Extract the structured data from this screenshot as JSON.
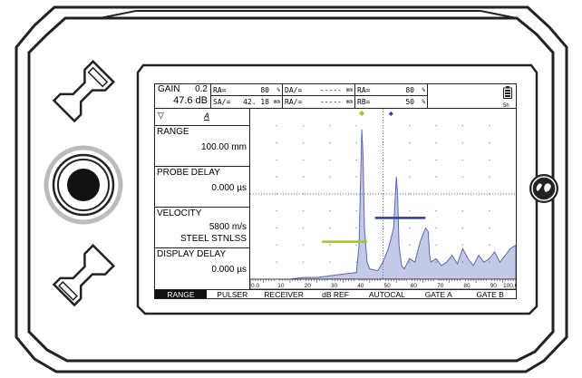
{
  "header": {
    "gain_label": "GAIN",
    "gain_step": "0.2",
    "gain_value": "47.6 dB",
    "measurements": [
      {
        "label": "RA=",
        "value": "80",
        "unit": "%"
      },
      {
        "label": "DA/=",
        "value": "-----",
        "unit": "mm"
      },
      {
        "label": "RA=",
        "value": "80",
        "unit": "%"
      },
      {
        "label": "SA/=",
        "value": "42. 18",
        "unit": "mm"
      },
      {
        "label": "RA/=",
        "value": "-----",
        "unit": "mm"
      },
      {
        "label": "RB=",
        "value": "50",
        "unit": "%"
      }
    ],
    "battery_label": "5h"
  },
  "sidebar": {
    "mode_label": "A",
    "params": [
      {
        "title": "RANGE",
        "value": "100.00 mm",
        "extra": ""
      },
      {
        "title": "PROBE DELAY",
        "value": "0.000 µs",
        "extra": ""
      },
      {
        "title": "VELOCITY",
        "value": "5800 m/s",
        "extra": "STEEL STNLSS"
      },
      {
        "title": "DISPLAY DELAY",
        "value": "0.000 µs",
        "extra": ""
      }
    ]
  },
  "scale_labels": [
    "0.0",
    "10",
    "20",
    "30",
    "40",
    "50",
    "60",
    "70",
    "80",
    "90",
    "100.0"
  ],
  "menu": {
    "items": [
      "RANGE",
      "PULSER",
      "RECEIVER",
      "dB REF",
      "AUTOCAL",
      "GATE A",
      "GATE B"
    ],
    "active": "RANGE"
  },
  "colors": {
    "signal": "#5666b8",
    "gate_a": "#9ec62b",
    "gate_b": "#2a3f96",
    "device_body": "#ffffff",
    "device_outline": "#222222"
  },
  "icons": {
    "up_button": "arrow-up-icon",
    "down_button": "arrow-down-icon",
    "joystick": "joystick-icon",
    "brand": "ge-logo-icon"
  },
  "chart_data": {
    "type": "line",
    "x": [
      0,
      5,
      10,
      15,
      20,
      25,
      30,
      35,
      40,
      41,
      42,
      42.5,
      43,
      44,
      45,
      48,
      50,
      52,
      54,
      55,
      55.5,
      56,
      57,
      58,
      60,
      62,
      64,
      66,
      67,
      67.5,
      68,
      70,
      72,
      74,
      76,
      78,
      80,
      82,
      84,
      86,
      88,
      90,
      92,
      94,
      96,
      98,
      100
    ],
    "y": [
      0,
      0,
      0,
      0,
      1,
      1,
      2,
      3,
      4,
      20,
      88,
      72,
      30,
      10,
      6,
      5,
      10,
      18,
      30,
      60,
      50,
      20,
      8,
      6,
      12,
      10,
      22,
      30,
      28,
      15,
      10,
      12,
      8,
      10,
      14,
      9,
      18,
      12,
      8,
      14,
      10,
      12,
      16,
      10,
      14,
      18,
      20
    ],
    "xlim": [
      0,
      100
    ],
    "ylim": [
      0,
      100
    ],
    "grid": true,
    "gates": [
      {
        "name": "A",
        "start": 27,
        "end": 44,
        "level": 22
      },
      {
        "name": "B",
        "start": 47,
        "end": 66,
        "level": 36
      }
    ]
  }
}
